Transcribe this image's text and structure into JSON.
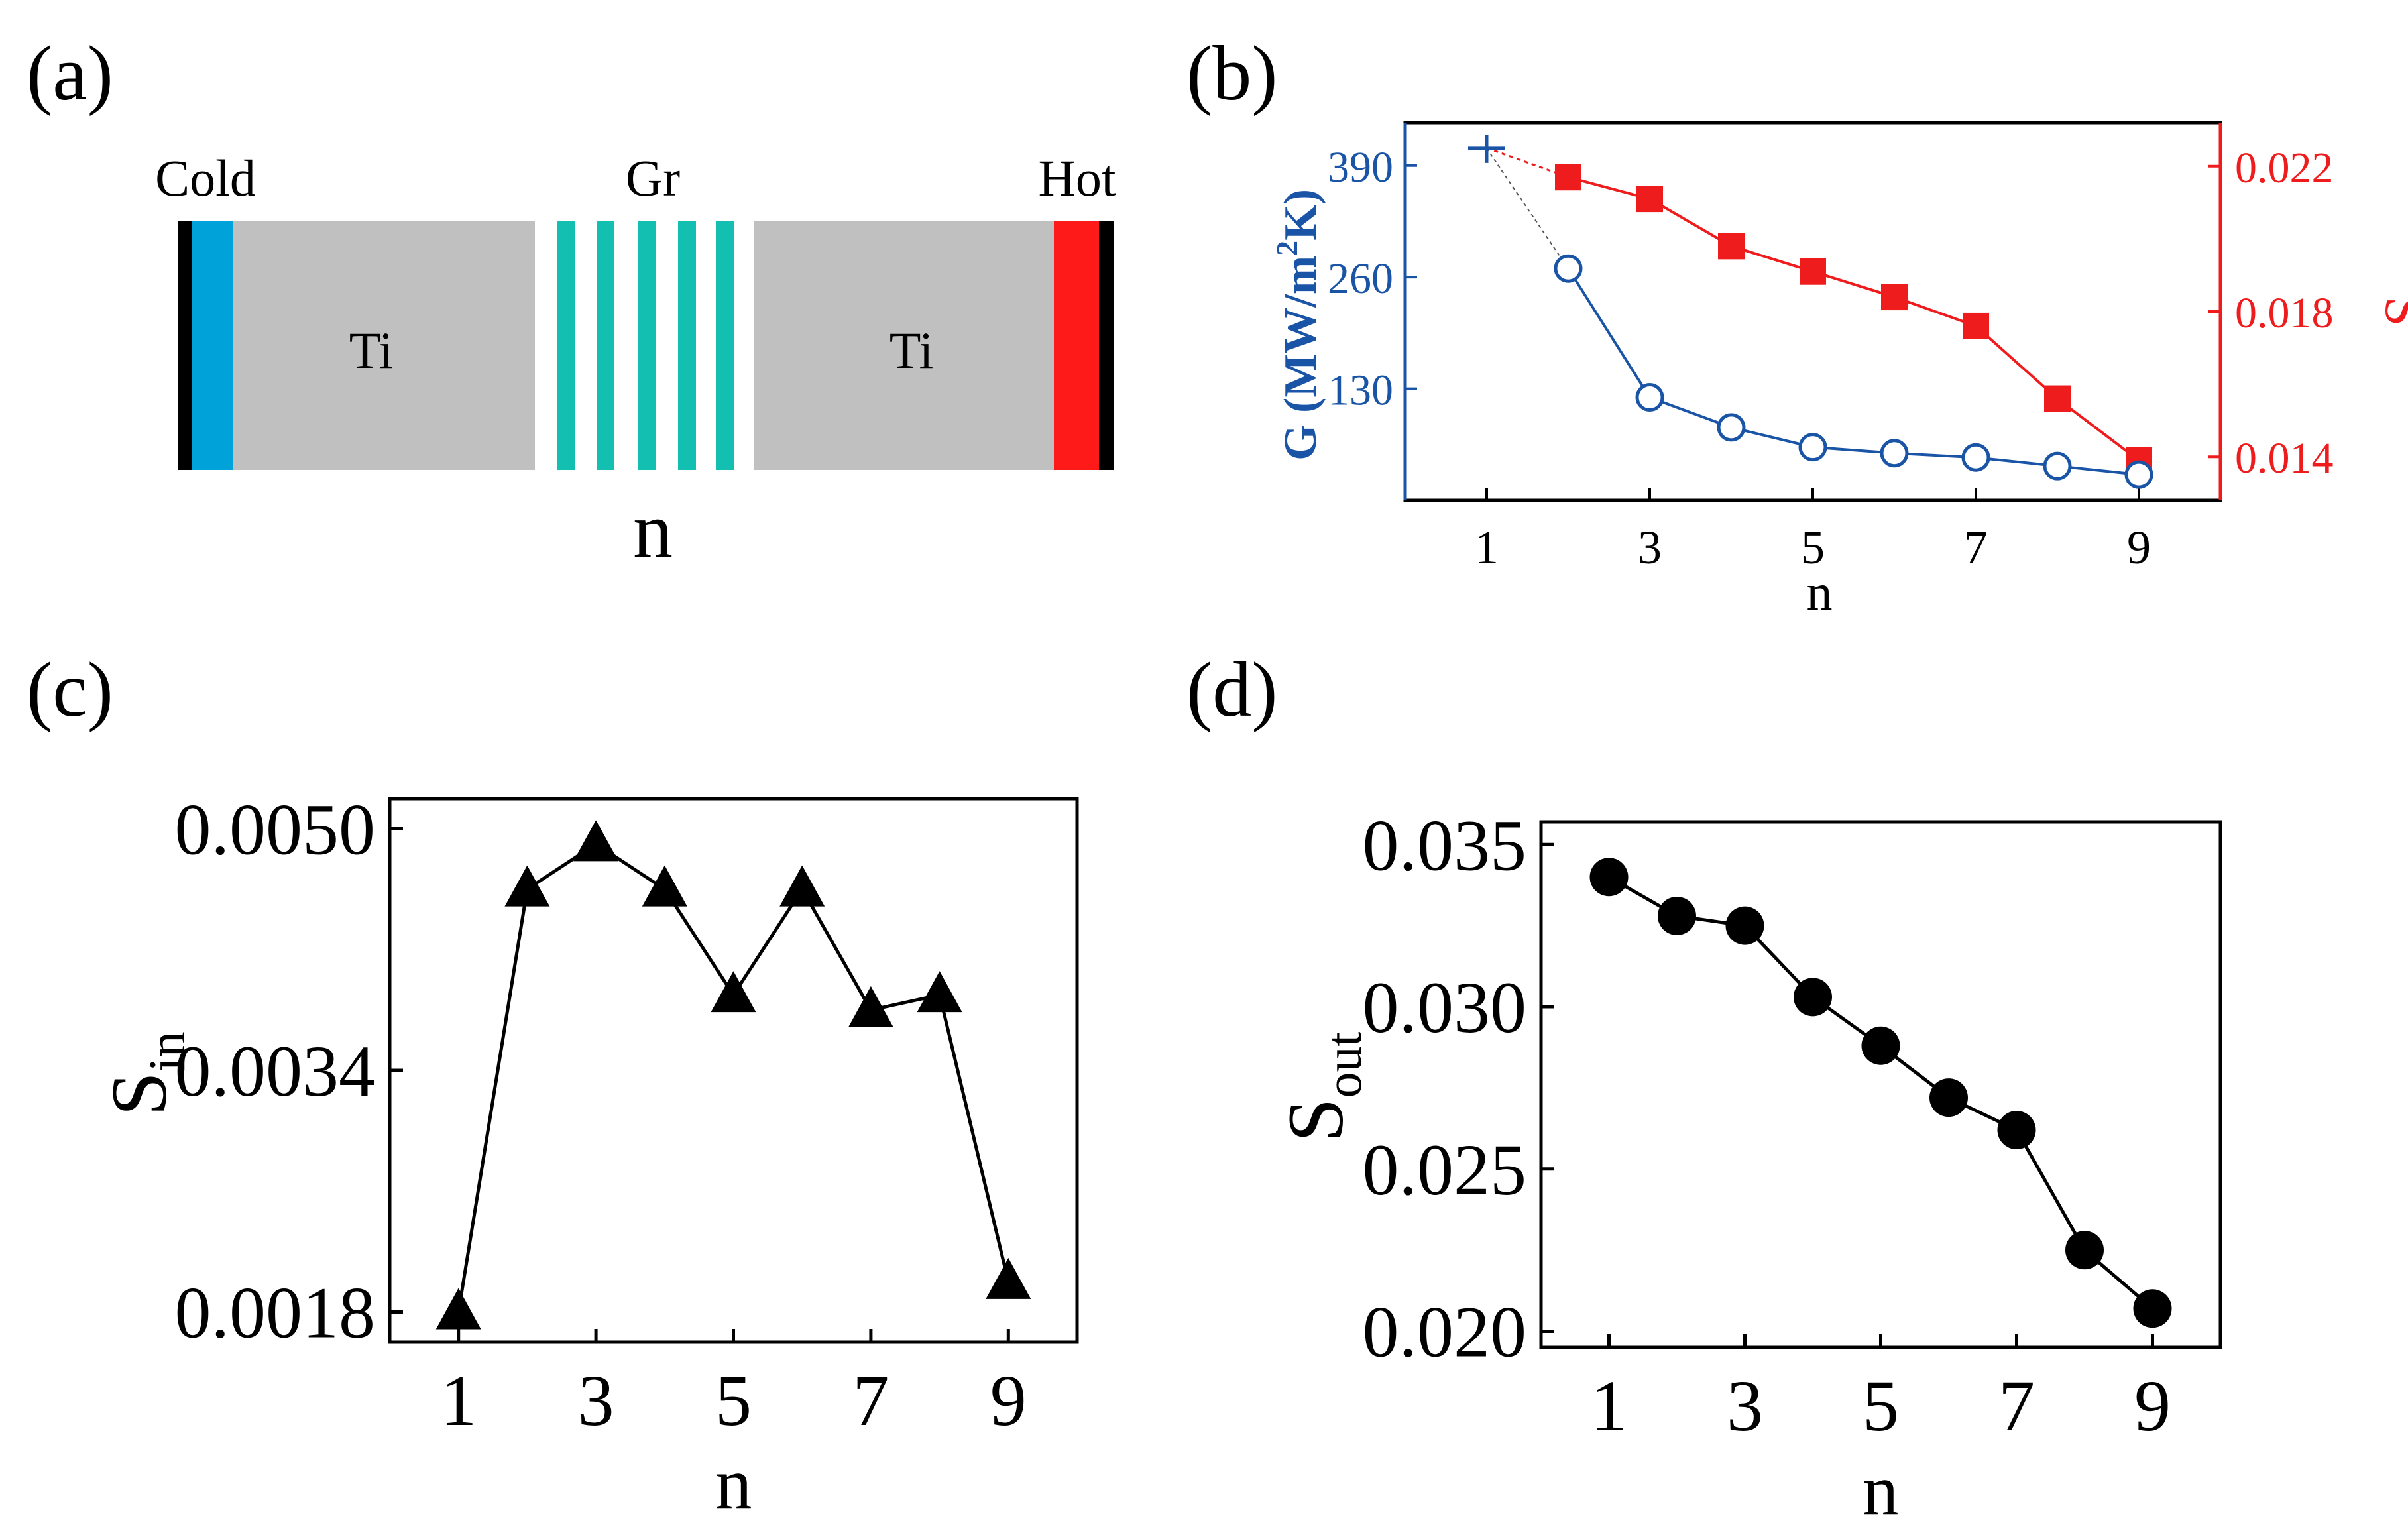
{
  "colors": {
    "blue": "#1a54a6",
    "red": "#ee1c1c",
    "cold": "#00a3d9",
    "hot": "#ff1a1a",
    "ti": "#c0c0c0",
    "gr": "#12bfb0",
    "ink": "#000000"
  },
  "panel_a": {
    "label": "(a)",
    "cold_label": "Cold",
    "gr_label": "Gr",
    "hot_label": "Hot",
    "ti_left": "Ti",
    "ti_right": "Ti",
    "n_label": "n"
  },
  "chart_data": [
    {
      "panel": "(b)",
      "type": "line",
      "x": [
        1,
        2,
        3,
        4,
        5,
        6,
        7,
        8,
        9
      ],
      "xticks": [
        "1",
        "3",
        "5",
        "7",
        "9"
      ],
      "xlim": [
        0,
        10
      ],
      "xlabel": "n",
      "series": [
        {
          "name": "G",
          "axis": "left",
          "color": "#1a54a6",
          "values": [
            410,
            270,
            120,
            85,
            62,
            55,
            50,
            40,
            30
          ]
        },
        {
          "name": "S",
          "axis": "right",
          "color": "#ee1c1c",
          "values": [
            0.0225,
            0.0217,
            0.0211,
            0.0198,
            0.0191,
            0.0184,
            0.0176,
            0.0156,
            0.0139
          ]
        }
      ],
      "ylabel_left": "G (MW/m",
      "ylabel_left_sup": "2",
      "ylabel_left_tail": "K)",
      "ylim_left": [
        0,
        440
      ],
      "yticks_left": [
        "130",
        "260",
        "390"
      ],
      "ylabel_right": "S",
      "ylim_right": [
        0.0128,
        0.0232
      ],
      "yticks_right": [
        "0.014",
        "0.018",
        "0.022"
      ]
    },
    {
      "panel": "(c)",
      "type": "line",
      "x": [
        1,
        2,
        3,
        4,
        5,
        6,
        7,
        8,
        9
      ],
      "values": [
        0.0018,
        0.0046,
        0.0049,
        0.0046,
        0.0039,
        0.0046,
        0.0038,
        0.0039,
        0.002
      ],
      "xticks": [
        "1",
        "3",
        "5",
        "7",
        "9"
      ],
      "yticks": [
        "0.0018",
        "0.0034",
        "0.0050"
      ],
      "xlim": [
        0,
        10
      ],
      "ylim": [
        0.0016,
        0.0052
      ],
      "xlabel": "n",
      "ylabel": "S",
      "ylabel_sub": "in",
      "marker": "triangle"
    },
    {
      "panel": "(d)",
      "type": "line",
      "x": [
        1,
        2,
        3,
        4,
        5,
        6,
        7,
        8,
        9
      ],
      "values": [
        0.034,
        0.0328,
        0.0325,
        0.0303,
        0.0288,
        0.0272,
        0.0262,
        0.0225,
        0.0207
      ],
      "xticks": [
        "1",
        "3",
        "5",
        "7",
        "9"
      ],
      "yticks": [
        "0.020",
        "0.025",
        "0.030",
        "0.035"
      ],
      "xlim": [
        0,
        10
      ],
      "ylim": [
        0.0195,
        0.0357
      ],
      "xlabel": "n",
      "ylabel": "S",
      "ylabel_sub": "out",
      "marker": "circle"
    }
  ]
}
